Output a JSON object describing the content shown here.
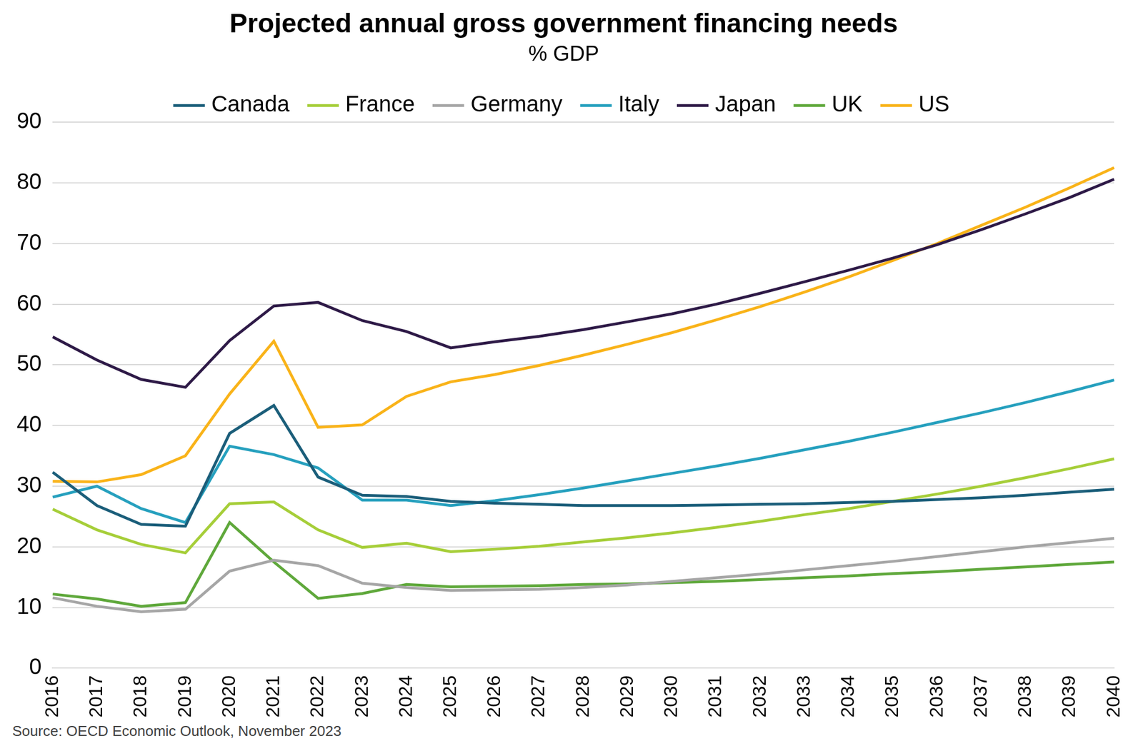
{
  "chart_data": {
    "type": "line",
    "title": "Projected annual gross government financing needs",
    "subtitle": "% GDP",
    "source": "Source: OECD Economic Outlook, November 2023",
    "categories": [
      "2016",
      "2017",
      "2018",
      "2019",
      "2020",
      "2021",
      "2022",
      "2023",
      "2024",
      "2025",
      "2026",
      "2027",
      "2028",
      "2029",
      "2030",
      "2031",
      "2032",
      "2033",
      "2034",
      "2035",
      "2036",
      "2037",
      "2038",
      "2039",
      "2040"
    ],
    "series": [
      {
        "name": "Canada",
        "color": "#1b5e7a",
        "values": [
          32.3,
          26.8,
          23.7,
          23.4,
          38.7,
          43.3,
          31.5,
          28.5,
          28.3,
          27.5,
          27.2,
          27.0,
          26.8,
          26.8,
          26.8,
          26.9,
          27.0,
          27.1,
          27.3,
          27.5,
          27.8,
          28.1,
          28.5,
          29.0,
          29.5
        ]
      },
      {
        "name": "France",
        "color": "#a6ce39",
        "values": [
          26.2,
          22.8,
          20.4,
          19.0,
          27.1,
          27.4,
          22.8,
          19.9,
          20.6,
          19.2,
          19.6,
          20.1,
          20.8,
          21.5,
          22.3,
          23.2,
          24.2,
          25.3,
          26.3,
          27.5,
          28.7,
          30.0,
          31.4,
          32.9,
          34.5
        ]
      },
      {
        "name": "Germany",
        "color": "#a6a6a6",
        "values": [
          11.6,
          10.2,
          9.3,
          9.7,
          16.0,
          17.8,
          16.9,
          14.0,
          13.3,
          12.8,
          12.9,
          13.0,
          13.3,
          13.7,
          14.3,
          14.9,
          15.5,
          16.2,
          16.9,
          17.6,
          18.4,
          19.2,
          20.0,
          20.7,
          21.4
        ]
      },
      {
        "name": "Italy",
        "color": "#26a0be",
        "values": [
          28.2,
          30.0,
          26.3,
          24.0,
          36.6,
          35.2,
          33.0,
          27.7,
          27.7,
          26.8,
          27.6,
          28.6,
          29.7,
          30.9,
          32.1,
          33.3,
          34.6,
          36.0,
          37.4,
          38.9,
          40.5,
          42.1,
          43.8,
          45.6,
          47.5
        ]
      },
      {
        "name": "Japan",
        "color": "#2e1a47",
        "values": [
          54.6,
          50.8,
          47.6,
          46.3,
          54.0,
          59.7,
          60.3,
          57.3,
          55.5,
          52.8,
          53.8,
          54.7,
          55.8,
          57.1,
          58.4,
          60.0,
          61.8,
          63.7,
          65.6,
          67.6,
          69.8,
          72.3,
          74.9,
          77.6,
          80.6
        ]
      },
      {
        "name": "UK",
        "color": "#5fa83b",
        "values": [
          12.2,
          11.4,
          10.2,
          10.8,
          24.0,
          17.5,
          11.5,
          12.3,
          13.8,
          13.4,
          13.5,
          13.6,
          13.8,
          13.9,
          14.1,
          14.3,
          14.6,
          14.9,
          15.2,
          15.6,
          15.9,
          16.3,
          16.7,
          17.1,
          17.5
        ]
      },
      {
        "name": "US",
        "color": "#f9b319",
        "values": [
          30.8,
          30.7,
          31.9,
          35.0,
          45.2,
          53.9,
          39.7,
          40.1,
          44.8,
          47.2,
          48.4,
          49.9,
          51.6,
          53.4,
          55.3,
          57.4,
          59.6,
          62.0,
          64.5,
          67.2,
          70.0,
          73.0,
          76.0,
          79.2,
          82.5
        ]
      }
    ],
    "ylim": [
      0,
      90
    ],
    "yticks": [
      0,
      10,
      20,
      30,
      40,
      50,
      60,
      70,
      80,
      90
    ],
    "grid": true,
    "legend": "top"
  }
}
